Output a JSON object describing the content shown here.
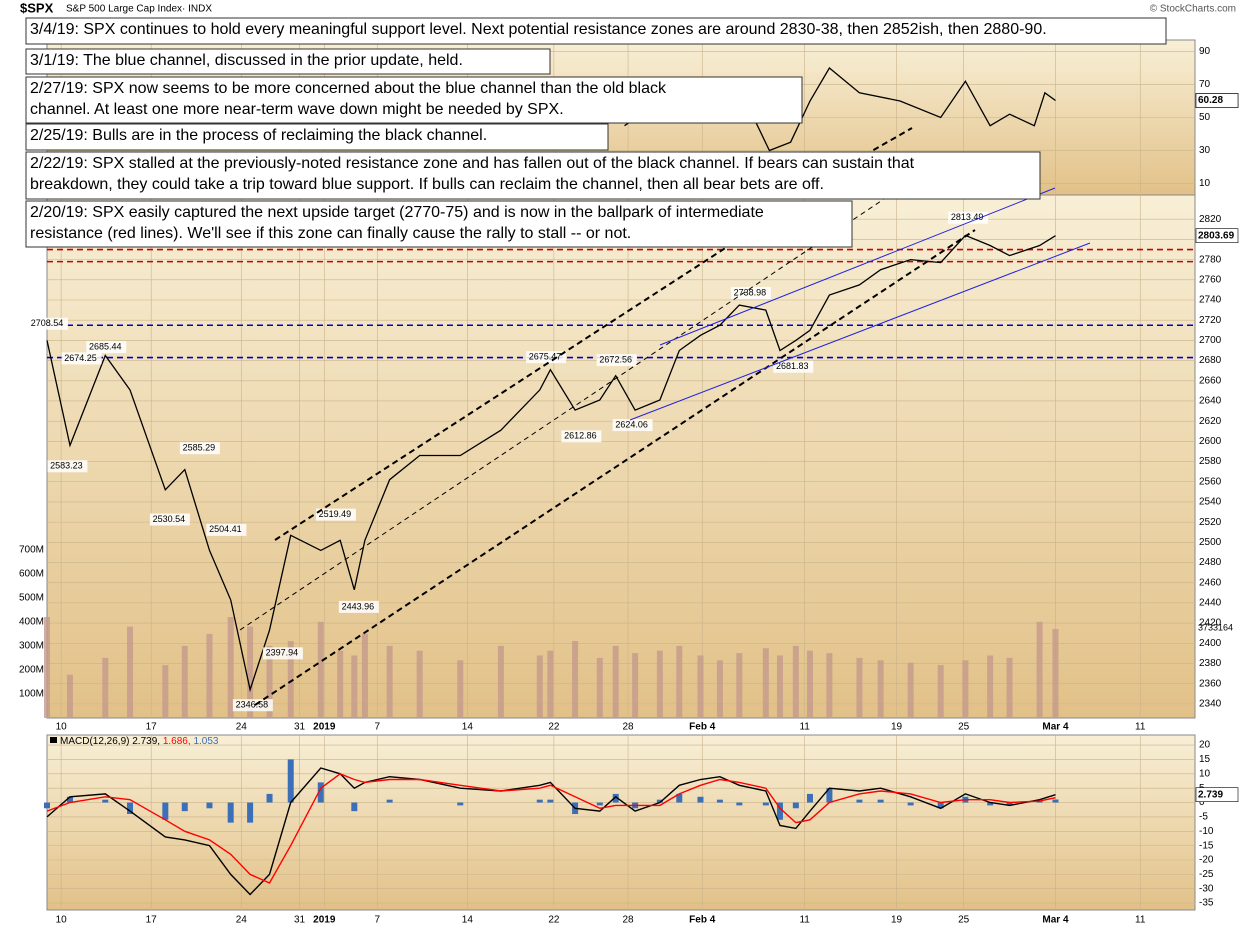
{
  "title": "$SPX",
  "subtitle": "S&P 500 Large Cap Index· INDX",
  "credit": "© StockCharts.com",
  "notes": [
    [
      "3/4/19:  SPX continues to hold every meaningful support level.  Next potential resistance zones are around 2830-38, then 2852ish, then 2880-90."
    ],
    [
      "3/1/19:  The blue channel, discussed in the prior update, held."
    ],
    [
      "2/27/19:  SPX now seems to be more concerned about the blue channel than the old black",
      "channel. At least one more near-term wave down might be needed by SPX."
    ],
    [
      "2/25/19:  Bulls are in the process of reclaiming the black channel."
    ],
    [
      "2/22/19:  SPX stalled at the previously-noted resistance zone and has fallen out of the black channel.  If bears can sustain that",
      "breakdown, they could take a trip toward blue support.  If bulls can reclaim the channel, then all bear bets are off."
    ],
    [
      "2/20/19:  SPX easily captured the next upside target (2770-75) and is now in the ballpark of intermediate",
      "resistance (red lines).  We'll see if this zone can finally cause the rally to stall -- or not."
    ]
  ],
  "chart_data": [
    {
      "type": "line",
      "color": "#000000",
      "xlim": [
        0,
        65
      ],
      "ylim": [
        3,
        97
      ],
      "yticks": [
        10,
        30,
        50,
        70,
        90
      ],
      "grid": true,
      "x": [
        32.7,
        34.1,
        35.8,
        37.0,
        39.2,
        40.9,
        42.1,
        43.2,
        44.3,
        46.0,
        48.3,
        50.6,
        52.0,
        53.4,
        54.5,
        55.9,
        56.5,
        57.1
      ],
      "values": [
        45,
        55,
        60,
        62,
        68,
        30,
        35,
        60,
        80,
        65,
        60,
        50,
        72,
        45,
        52,
        45,
        65,
        60.28
      ],
      "last_label": 60.28
    },
    {
      "type": "line",
      "color": "#000000",
      "xlim": [
        0,
        65
      ],
      "ylim": [
        2326,
        2844
      ],
      "grid": true,
      "yticks": [
        2340,
        2360,
        2380,
        2400,
        2420,
        2440,
        2460,
        2480,
        2500,
        2520,
        2540,
        2560,
        2580,
        2600,
        2620,
        2640,
        2660,
        2680,
        2700,
        2720,
        2740,
        2760,
        2780,
        2800,
        2820
      ],
      "xticks": [
        {
          "value": 0.8,
          "label": "10"
        },
        {
          "value": 5.9,
          "label": "17"
        },
        {
          "value": 11.0,
          "label": "24"
        },
        {
          "value": 14.3,
          "label": "31"
        },
        {
          "value": 15.7,
          "label": "2019"
        },
        {
          "value": 18.7,
          "label": "7"
        },
        {
          "value": 23.8,
          "label": "14"
        },
        {
          "value": 28.7,
          "label": "22"
        },
        {
          "value": 32.9,
          "label": "28"
        },
        {
          "value": 37.1,
          "label": "Feb 4"
        },
        {
          "value": 42.9,
          "label": "11"
        },
        {
          "value": 48.1,
          "label": "19"
        },
        {
          "value": 51.9,
          "label": "25"
        },
        {
          "value": 57.1,
          "label": "Mar 4"
        },
        {
          "value": 61.9,
          "label": "11"
        }
      ],
      "x": [
        0,
        1.3,
        3.3,
        4.7,
        6.7,
        7.8,
        9.2,
        10.4,
        11.5,
        12.6,
        13.8,
        15.5,
        16.6,
        17.4,
        18.0,
        19.4,
        21.1,
        23.4,
        25.7,
        27.9,
        28.5,
        29.9,
        31.3,
        32.2,
        33.3,
        34.7,
        35.8,
        37.0,
        38.1,
        39.2,
        40.7,
        41.5,
        42.4,
        43.2,
        44.3,
        46.0,
        47.2,
        48.9,
        50.6,
        52.0,
        53.4,
        54.5,
        56.2,
        57.1
      ],
      "values": [
        2700,
        2596,
        2685,
        2651,
        2552,
        2572,
        2492,
        2443,
        2354,
        2413,
        2507,
        2492,
        2502,
        2453,
        2502,
        2562,
        2586,
        2586,
        2611,
        2651,
        2671,
        2631,
        2641,
        2665,
        2631,
        2641,
        2690,
        2705,
        2715,
        2735,
        2730,
        2690,
        2700,
        2710,
        2745,
        2755,
        2770,
        2780,
        2777,
        2804,
        2794,
        2784,
        2794,
        2803.69
      ],
      "last_label": 2803.69,
      "levels": [
        {
          "value": 2790,
          "color": "#cc0000"
        },
        {
          "value": 2778,
          "color": "#cc0000"
        },
        {
          "value": 2715,
          "color": "#0000cc"
        },
        {
          "value": 2683,
          "color": "#0000cc"
        }
      ],
      "annotations": [
        {
          "x": 0,
          "value": 2708.54
        },
        {
          "x": 1.9,
          "value": 2674.25
        },
        {
          "x": 3.3,
          "value": 2685.44
        },
        {
          "x": 1.1,
          "value": 2583.23
        },
        {
          "x": 8.6,
          "value": 2585.29
        },
        {
          "x": 6.9,
          "value": 2530.54
        },
        {
          "x": 10.1,
          "value": 2504.41
        },
        {
          "x": 13.3,
          "value": 2397.94
        },
        {
          "x": 11.6,
          "value": 2346.58
        },
        {
          "x": 16.3,
          "value": 2519.49
        },
        {
          "x": 17.6,
          "value": 2443.96
        },
        {
          "x": 28.2,
          "value": 2675.47
        },
        {
          "x": 30.2,
          "value": 2612.86
        },
        {
          "x": 32.2,
          "value": 2672.56
        },
        {
          "x": 33.1,
          "value": 2624.06
        },
        {
          "x": 39.8,
          "value": 2738.98
        },
        {
          "x": 42.2,
          "value": 2681.83
        },
        {
          "x": 52.1,
          "value": 2813.49
        }
      ],
      "volume": {
        "color": "#c49a8c",
        "ylim": [
          0,
          2175000000
        ],
        "yticks": [
          {
            "value": 100000000,
            "label": "100M"
          },
          {
            "value": 200000000,
            "label": "200M"
          },
          {
            "value": 300000000,
            "label": "300M"
          },
          {
            "value": 400000000,
            "label": "400M"
          },
          {
            "value": 500000000,
            "label": "500M"
          },
          {
            "value": 600000000,
            "label": "600M"
          },
          {
            "value": 700000000,
            "label": "700M"
          }
        ],
        "values": [
          420000000,
          180000000,
          250000000,
          380000000,
          220000000,
          300000000,
          350000000,
          420000000,
          380000000,
          300000000,
          320000000,
          400000000,
          280000000,
          260000000,
          350000000,
          300000000,
          280000000,
          240000000,
          300000000,
          260000000,
          280000000,
          320000000,
          250000000,
          300000000,
          270000000,
          280000000,
          300000000,
          260000000,
          240000000,
          270000000,
          290000000,
          260000000,
          300000000,
          280000000,
          270000000,
          250000000,
          240000000,
          230000000,
          220000000,
          240000000,
          260000000,
          250000000,
          400000000,
          370000000
        ],
        "last_label": 3733164
      }
    },
    {
      "type": "macd",
      "legend": "MACD(12,26,9)",
      "xlim": [
        0,
        65
      ],
      "ylim": [
        -37.4,
        23.5
      ],
      "grid": true,
      "yticks": [
        20,
        15,
        10,
        5,
        0,
        -5,
        -10,
        -15,
        -20,
        -25,
        -30,
        -35
      ],
      "x": [
        0,
        1.3,
        3.3,
        4.7,
        6.7,
        7.8,
        9.2,
        10.4,
        11.5,
        12.6,
        13.8,
        15.5,
        16.6,
        17.4,
        18.0,
        19.4,
        21.1,
        23.4,
        25.7,
        27.9,
        28.5,
        29.9,
        31.3,
        32.2,
        33.3,
        34.7,
        35.8,
        37.0,
        38.1,
        39.2,
        40.7,
        41.5,
        42.4,
        43.2,
        44.3,
        46.0,
        47.2,
        48.9,
        50.6,
        52.0,
        53.4,
        54.5,
        56.2,
        57.1
      ],
      "series": [
        {
          "color": "#000000",
          "last": 2.739,
          "last_label": "2.739,",
          "values": [
            -5,
            2,
            3,
            -3,
            -12,
            -13,
            -15,
            -25,
            -32,
            -25,
            0,
            12,
            10,
            5,
            7,
            9,
            8,
            5,
            4,
            6,
            7,
            -2,
            -3,
            2,
            -3,
            0,
            6,
            8,
            9,
            6,
            4,
            -8,
            -9,
            -3,
            5,
            4,
            5,
            2,
            -2,
            3,
            0,
            -1,
            1,
            2.739
          ]
        },
        {
          "color": "#ff0000",
          "last": 1.686,
          "last_label": "1.686,",
          "values": [
            -3,
            0,
            2,
            1,
            -6,
            -10,
            -13,
            -18,
            -25,
            -28,
            -15,
            5,
            10,
            8,
            7,
            8,
            8,
            6,
            4,
            5,
            6,
            2,
            -2,
            -1,
            -1,
            -1,
            3,
            6,
            8,
            7,
            5,
            -2,
            -7,
            -6,
            0,
            3,
            4,
            3,
            0,
            1,
            1,
            0,
            0.5,
            1.686
          ]
        },
        {
          "color": "#3b6fb8",
          "last": 1.053,
          "last_label": "1.053",
          "values": [
            -2,
            2,
            1,
            -4,
            -6,
            -3,
            -2,
            -7,
            -7,
            3,
            15,
            7,
            0,
            -3,
            0,
            1,
            0,
            -1,
            0,
            1,
            1,
            -4,
            -1,
            3,
            -2,
            1,
            3,
            2,
            1,
            -1,
            -1,
            -6,
            -2,
            3,
            5,
            1,
            1,
            -1,
            -2,
            2,
            -1,
            -1,
            0.5,
            1.053
          ]
        }
      ]
    }
  ]
}
